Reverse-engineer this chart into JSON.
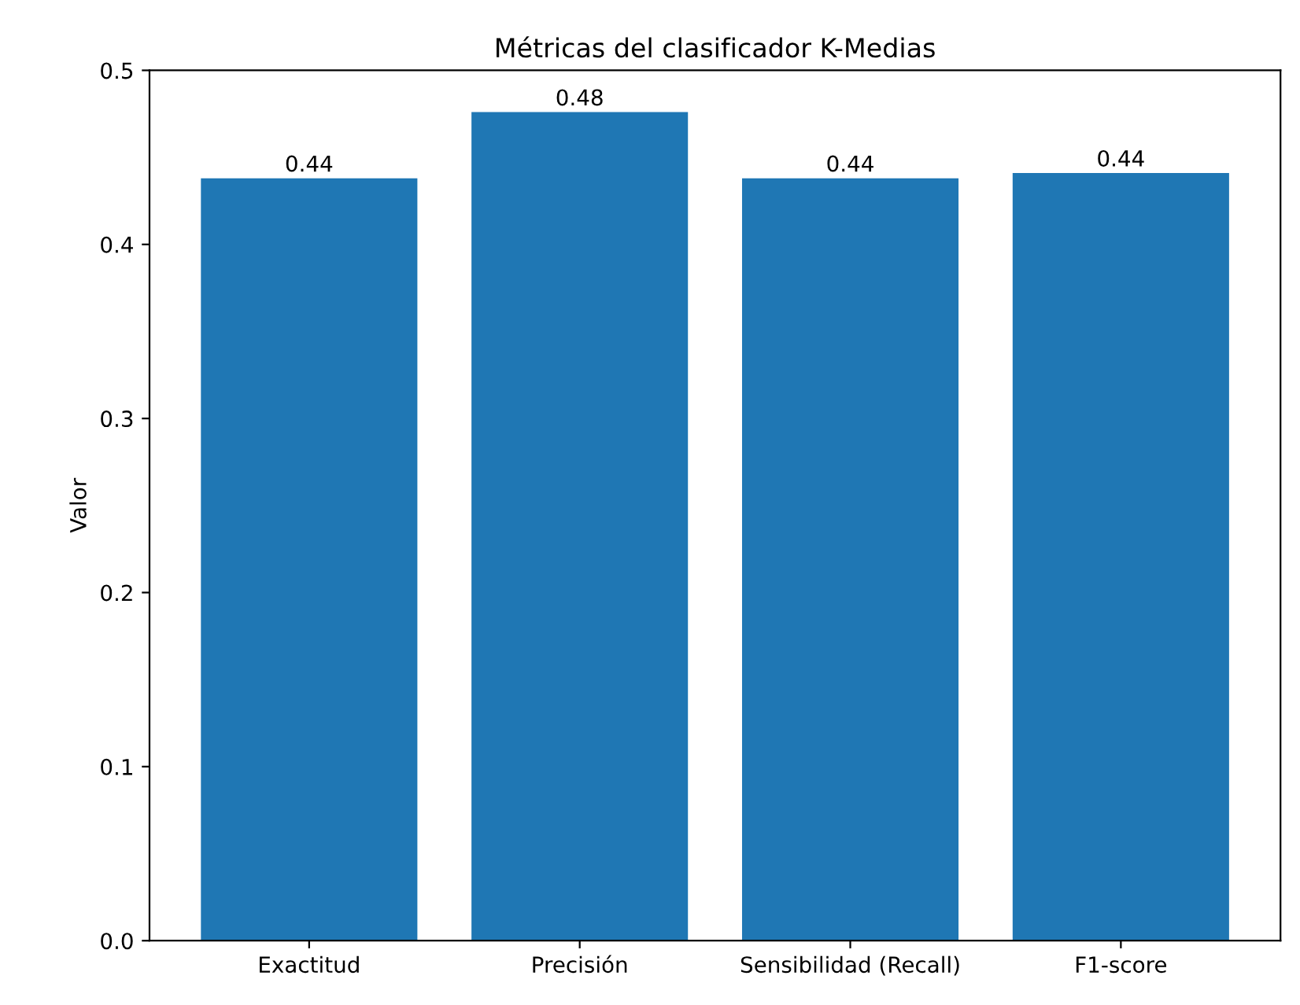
{
  "chart_data": {
    "type": "bar",
    "title": "Métricas del clasificador K-Medias",
    "ylabel": "Valor",
    "categories": [
      "Exactitud",
      "Precisión",
      "Sensibilidad (Recall)",
      "F1-score"
    ],
    "values": [
      0.438,
      0.476,
      0.438,
      0.441
    ],
    "value_labels": [
      "0.44",
      "0.48",
      "0.44",
      "0.44"
    ],
    "color": "#1f77b4",
    "ylim": [
      0,
      0.5
    ],
    "yticks": [
      {
        "value": 0,
        "label": "0.0"
      },
      0.1,
      0.2,
      0.3,
      0.4,
      0.5
    ],
    "grid": false
  }
}
